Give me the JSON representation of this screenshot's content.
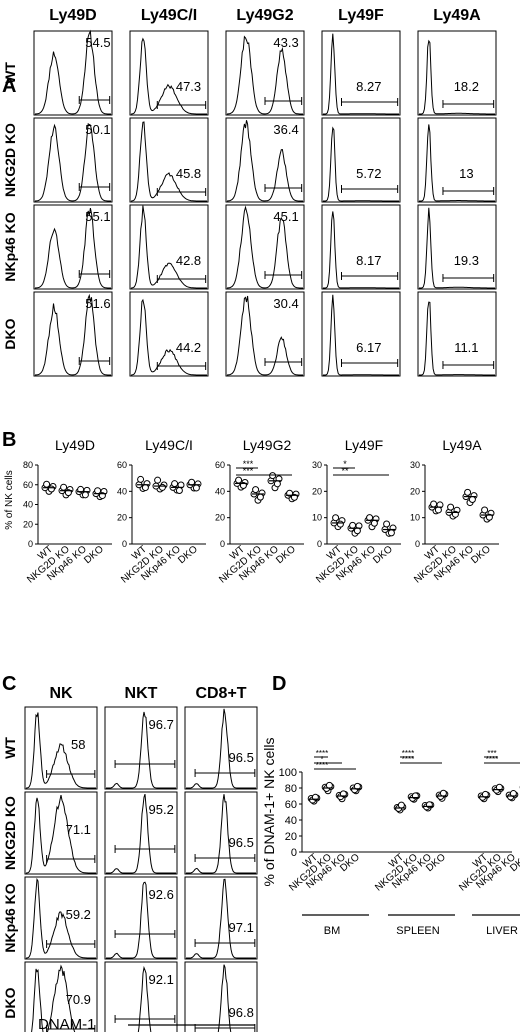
{
  "panel_labels": {
    "A": "A",
    "B": "B",
    "C": "C",
    "D": "D"
  },
  "chart_data": [
    {
      "panel": "A",
      "type": "histogram-grid",
      "columns": [
        "Ly49D",
        "Ly49C/I",
        "Ly49G2",
        "Ly49F",
        "Ly49A"
      ],
      "rows": [
        "WT",
        "NKG2D KO",
        "NKp46 KO",
        "DKO"
      ],
      "values": [
        [
          "54.5",
          "47.3",
          "43.3",
          "8.27",
          "18.2"
        ],
        [
          "50.1",
          "45.8",
          "36.4",
          "5.72",
          "13"
        ],
        [
          "55.1",
          "42.8",
          "45.1",
          "8.17",
          "19.3"
        ],
        [
          "51.6",
          "44.2",
          "30.4",
          "6.17",
          "11.1"
        ]
      ]
    },
    {
      "panel": "B",
      "type": "scatter",
      "ylabel": "% of NK cells",
      "categories": [
        "WT",
        "NKG2D KO",
        "NKp46 KO",
        "DKO"
      ],
      "plots": [
        {
          "title": "Ly49D",
          "ylim": [
            0,
            80
          ],
          "yticks": [
            0,
            20,
            40,
            60,
            80
          ],
          "means": [
            57,
            54,
            53,
            51
          ],
          "sig": []
        },
        {
          "title": "Ly49C/I",
          "ylim": [
            0,
            60
          ],
          "yticks": [
            0,
            20,
            40,
            60
          ],
          "means": [
            45,
            44,
            43,
            45
          ],
          "sig": []
        },
        {
          "title": "Ly49G2",
          "ylim": [
            0,
            60
          ],
          "yticks": [
            0,
            20,
            40,
            60
          ],
          "means": [
            46,
            38,
            48,
            37
          ],
          "sig": [
            "***",
            "***"
          ]
        },
        {
          "title": "Ly49F",
          "ylim": [
            0,
            30
          ],
          "yticks": [
            0,
            10,
            20,
            30
          ],
          "means": [
            8,
            6,
            9,
            5.5
          ],
          "sig": [
            "*",
            "**"
          ]
        },
        {
          "title": "Ly49A",
          "ylim": [
            0,
            30
          ],
          "yticks": [
            0,
            10,
            20,
            30
          ],
          "means": [
            14,
            12,
            18,
            11
          ],
          "sig": []
        }
      ]
    },
    {
      "panel": "C",
      "type": "histogram-grid",
      "columns": [
        "NK",
        "NKT",
        "CD8+T"
      ],
      "rows": [
        "WT",
        "NKG2D KO",
        "NKp46 KO",
        "DKO"
      ],
      "values": [
        [
          "58",
          "96.7",
          "96.5"
        ],
        [
          "71.1",
          "95.2",
          "96.5"
        ],
        [
          "59.2",
          "92.6",
          "97.1"
        ],
        [
          "70.9",
          "92.1",
          "96.8"
        ]
      ],
      "xlabel": "DNAM-1"
    },
    {
      "panel": "D",
      "type": "scatter",
      "ylabel": "% of DNAM-1+ NK cells",
      "ylim": [
        0,
        100
      ],
      "yticks": [
        0,
        20,
        40,
        60,
        80,
        100
      ],
      "categories": [
        "WT",
        "NKG2D KO",
        "NKp46 KO",
        "DKO"
      ],
      "groups": [
        {
          "name": "BM",
          "means": [
            66,
            80,
            70,
            79
          ],
          "sig": [
            "****",
            "*",
            "****"
          ]
        },
        {
          "name": "SPLEEN",
          "means": [
            55,
            68,
            57,
            70
          ],
          "sig": [
            "****",
            "****"
          ]
        },
        {
          "name": "LIVER",
          "means": [
            69,
            78,
            70,
            80
          ],
          "sig": [
            "***",
            "****"
          ]
        }
      ]
    }
  ]
}
